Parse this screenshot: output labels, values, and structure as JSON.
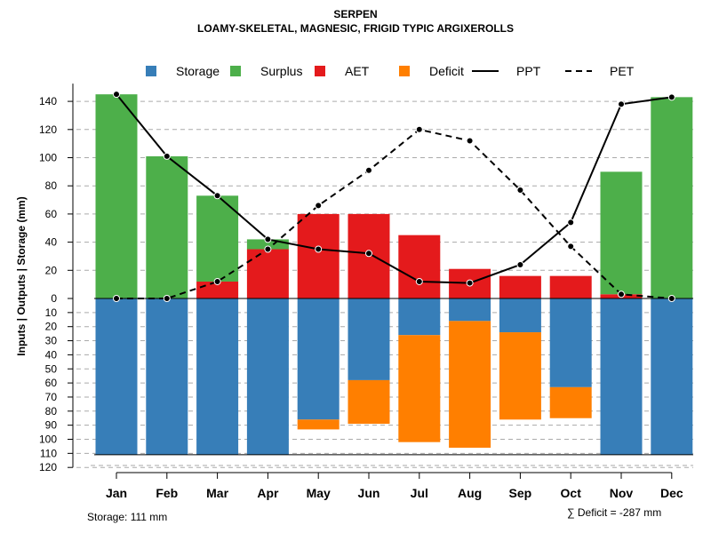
{
  "chart_data": {
    "type": "bar",
    "title": "SERPEN",
    "subtitle": "LOAMY-SKELETAL, MAGNESIC, FRIGID TYPIC ARGIXEROLLS",
    "ylabel": "Inputs | Outputs | Storage    (mm)",
    "xlabel": "",
    "categories": [
      "Jan",
      "Feb",
      "Mar",
      "Apr",
      "May",
      "Jun",
      "Jul",
      "Aug",
      "Sep",
      "Oct",
      "Nov",
      "Dec"
    ],
    "ylim": [
      -120,
      150
    ],
    "yticks_up": [
      0,
      20,
      40,
      60,
      80,
      100,
      120,
      140
    ],
    "yticks_down": [
      10,
      20,
      30,
      40,
      50,
      60,
      70,
      80,
      90,
      100,
      110,
      120
    ],
    "legend": [
      {
        "label": "Storage",
        "kind": "box",
        "color": "#377EB8"
      },
      {
        "label": "Surplus",
        "kind": "box",
        "color": "#4DAF4A"
      },
      {
        "label": "AET",
        "kind": "box",
        "color": "#E41A1C"
      },
      {
        "label": "Deficit",
        "kind": "box",
        "color": "#FF7F00"
      },
      {
        "label": "PPT",
        "kind": "solid",
        "color": "#000000"
      },
      {
        "label": "PET",
        "kind": "dashed",
        "color": "#000000"
      }
    ],
    "legend_position": "top",
    "series": [
      {
        "name": "AET",
        "color": "#E41A1C",
        "values": [
          0,
          0,
          12,
          35,
          60,
          60,
          45,
          21,
          16,
          16,
          3,
          0
        ]
      },
      {
        "name": "Surplus",
        "color": "#4DAF4A",
        "values": [
          145,
          101,
          61,
          7,
          0,
          0,
          0,
          0,
          0,
          0,
          87,
          143
        ]
      },
      {
        "name": "Storage",
        "color": "#377EB8",
        "values": [
          111,
          111,
          111,
          111,
          86,
          58,
          26,
          16,
          24,
          63,
          111,
          111
        ]
      },
      {
        "name": "Deficit",
        "color": "#FF7F00",
        "values": [
          0,
          0,
          0,
          0,
          7,
          31,
          76,
          90,
          62,
          22,
          0,
          0
        ]
      },
      {
        "name": "PPT",
        "color": "#000000",
        "values": [
          145,
          101,
          73,
          42,
          35,
          32,
          12,
          11,
          24,
          54,
          138,
          143
        ]
      },
      {
        "name": "PET",
        "color": "#000000",
        "values": [
          0,
          0,
          12,
          35,
          66,
          91,
          120,
          112,
          77,
          37,
          3,
          0
        ]
      }
    ]
  },
  "footer": {
    "storage": "Storage: 111 mm",
    "deficit": "∑ Deficit = -287 mm"
  }
}
